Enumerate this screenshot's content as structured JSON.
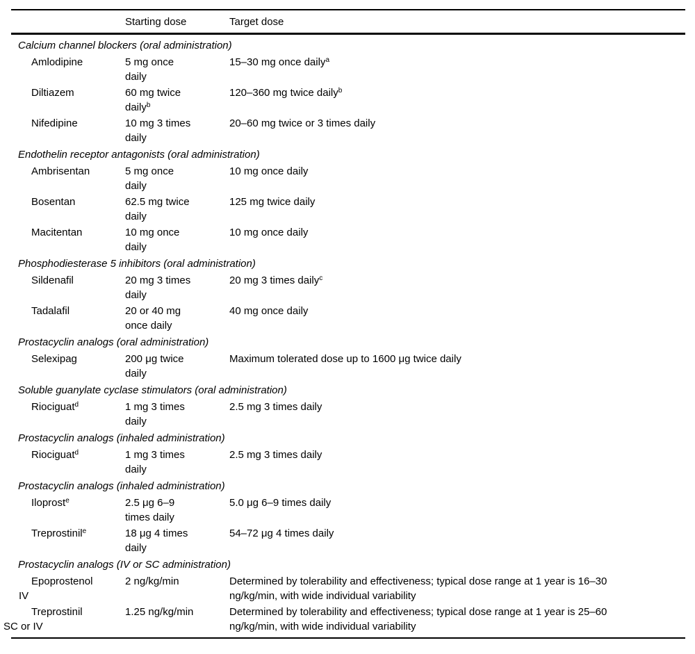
{
  "colors": {
    "background": "#ffffff",
    "text": "#000000",
    "rule": "#000000"
  },
  "table": {
    "columns": [
      "Starting dose",
      "Target dose"
    ],
    "rows": [
      {
        "kind": "section",
        "label": "Calcium channel blockers (oral administration)"
      },
      {
        "kind": "drug",
        "name": [
          "Amlodipine"
        ],
        "starting": [
          "5 mg once",
          "daily"
        ],
        "target": [
          "15–30 mg once daily^a"
        ]
      },
      {
        "kind": "drug",
        "name": [
          "Diltiazem"
        ],
        "starting": [
          "60 mg twice",
          "daily^b"
        ],
        "target": [
          "120–360 mg twice daily^b"
        ]
      },
      {
        "kind": "drug",
        "name": [
          "Nifedipine"
        ],
        "starting": [
          "10 mg 3 times",
          "daily"
        ],
        "target": [
          "20–60 mg twice or 3 times daily"
        ]
      },
      {
        "kind": "section",
        "label": "Endothelin receptor antagonists (oral administration)"
      },
      {
        "kind": "drug",
        "name": [
          "Ambrisentan"
        ],
        "starting": [
          "5 mg once",
          "daily"
        ],
        "target": [
          "10 mg once daily"
        ]
      },
      {
        "kind": "drug",
        "name": [
          "Bosentan"
        ],
        "starting": [
          "62.5 mg twice",
          "daily"
        ],
        "target": [
          "125 mg twice daily"
        ]
      },
      {
        "kind": "drug",
        "name": [
          "Macitentan"
        ],
        "starting": [
          "10 mg once",
          "daily"
        ],
        "target": [
          "10 mg once daily"
        ]
      },
      {
        "kind": "section",
        "label": "Phosphodiesterase 5 inhibitors (oral administration)"
      },
      {
        "kind": "drug",
        "name": [
          "Sildenafil"
        ],
        "starting": [
          "20 mg 3 times",
          "daily"
        ],
        "target": [
          "20 mg 3 times daily^c"
        ]
      },
      {
        "kind": "drug",
        "name": [
          "Tadalafil"
        ],
        "starting": [
          "20 or 40 mg",
          "once daily"
        ],
        "target": [
          "40 mg once daily"
        ]
      },
      {
        "kind": "section",
        "label": "Prostacyclin analogs (oral administration)"
      },
      {
        "kind": "drug",
        "name": [
          "Selexipag"
        ],
        "starting": [
          "200 μg twice",
          "daily"
        ],
        "target": [
          "Maximum tolerated dose up to 1600 μg twice daily"
        ]
      },
      {
        "kind": "section",
        "label": "Soluble guanylate cyclase stimulators (oral administration)"
      },
      {
        "kind": "drug",
        "name": [
          "Riociguat^d"
        ],
        "starting": [
          "1 mg 3 times",
          "daily"
        ],
        "target": [
          "2.5 mg 3 times daily"
        ]
      },
      {
        "kind": "section",
        "label": "Prostacyclin analogs (inhaled administration)"
      },
      {
        "kind": "drug",
        "name": [
          "Riociguat^d"
        ],
        "starting": [
          "1 mg 3 times",
          "daily"
        ],
        "target": [
          "2.5 mg 3 times daily"
        ]
      },
      {
        "kind": "section",
        "label": "Prostacyclin analogs (inhaled administration)"
      },
      {
        "kind": "drug",
        "name": [
          "Iloprost^e"
        ],
        "starting": [
          "2.5 μg 6–9",
          "times daily"
        ],
        "target": [
          "5.0 μg 6–9 times daily"
        ]
      },
      {
        "kind": "drug",
        "name": [
          "Treprostinil^e"
        ],
        "starting": [
          "18 μg 4 times",
          "daily"
        ],
        "target": [
          "54–72 μg 4 times daily"
        ]
      },
      {
        "kind": "section",
        "label": "Prostacyclin analogs (IV or SC administration)"
      },
      {
        "kind": "drug",
        "name": [
          "Epoprostenol",
          "IV"
        ],
        "starting": [
          "2 ng/kg/min"
        ],
        "target": [
          "Determined by tolerability and effectiveness; typical dose range at 1 year is 16–30",
          "ng/kg/min, with wide individual variability"
        ]
      },
      {
        "kind": "drug",
        "name": [
          "Treprostinil",
          "SC or IV"
        ],
        "name_flush": true,
        "starting": [
          "1.25 ng/kg/min"
        ],
        "target": [
          "Determined by tolerability and effectiveness; typical dose range at 1 year is 25–60",
          "ng/kg/min, with wide individual variability"
        ]
      }
    ]
  }
}
